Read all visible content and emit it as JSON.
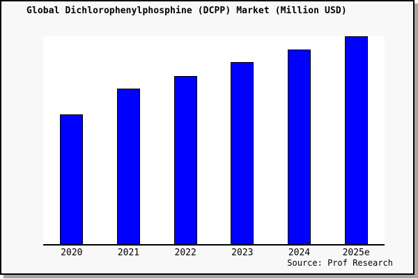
{
  "chart_data": {
    "type": "bar",
    "title": "Global Dichlorophenylphosphine (DCPP) Market (Million USD)",
    "categories": [
      "2020",
      "2021",
      "2022",
      "2023",
      "2024",
      "2025e"
    ],
    "values": [
      62.5,
      75,
      81,
      87.5,
      93.5,
      100
    ],
    "value_basis": "no y-axis or data labels shown; bar values estimated from bar heights, indexed to 2025e = 100",
    "xlabel": "",
    "ylabel": "",
    "ylim": [
      0,
      100
    ],
    "grid": false,
    "legend": false,
    "bar_color": "#0000ff",
    "bar_outline": "#000000",
    "axis_color": "#000000"
  },
  "source": "Source: Prof Research",
  "colors": {
    "figure_bg": "#f8f8f8",
    "plot_bg": "#ffffff",
    "frame_border": "#000000",
    "frame_shadow": "#a6a6a6",
    "text": "#000000"
  }
}
